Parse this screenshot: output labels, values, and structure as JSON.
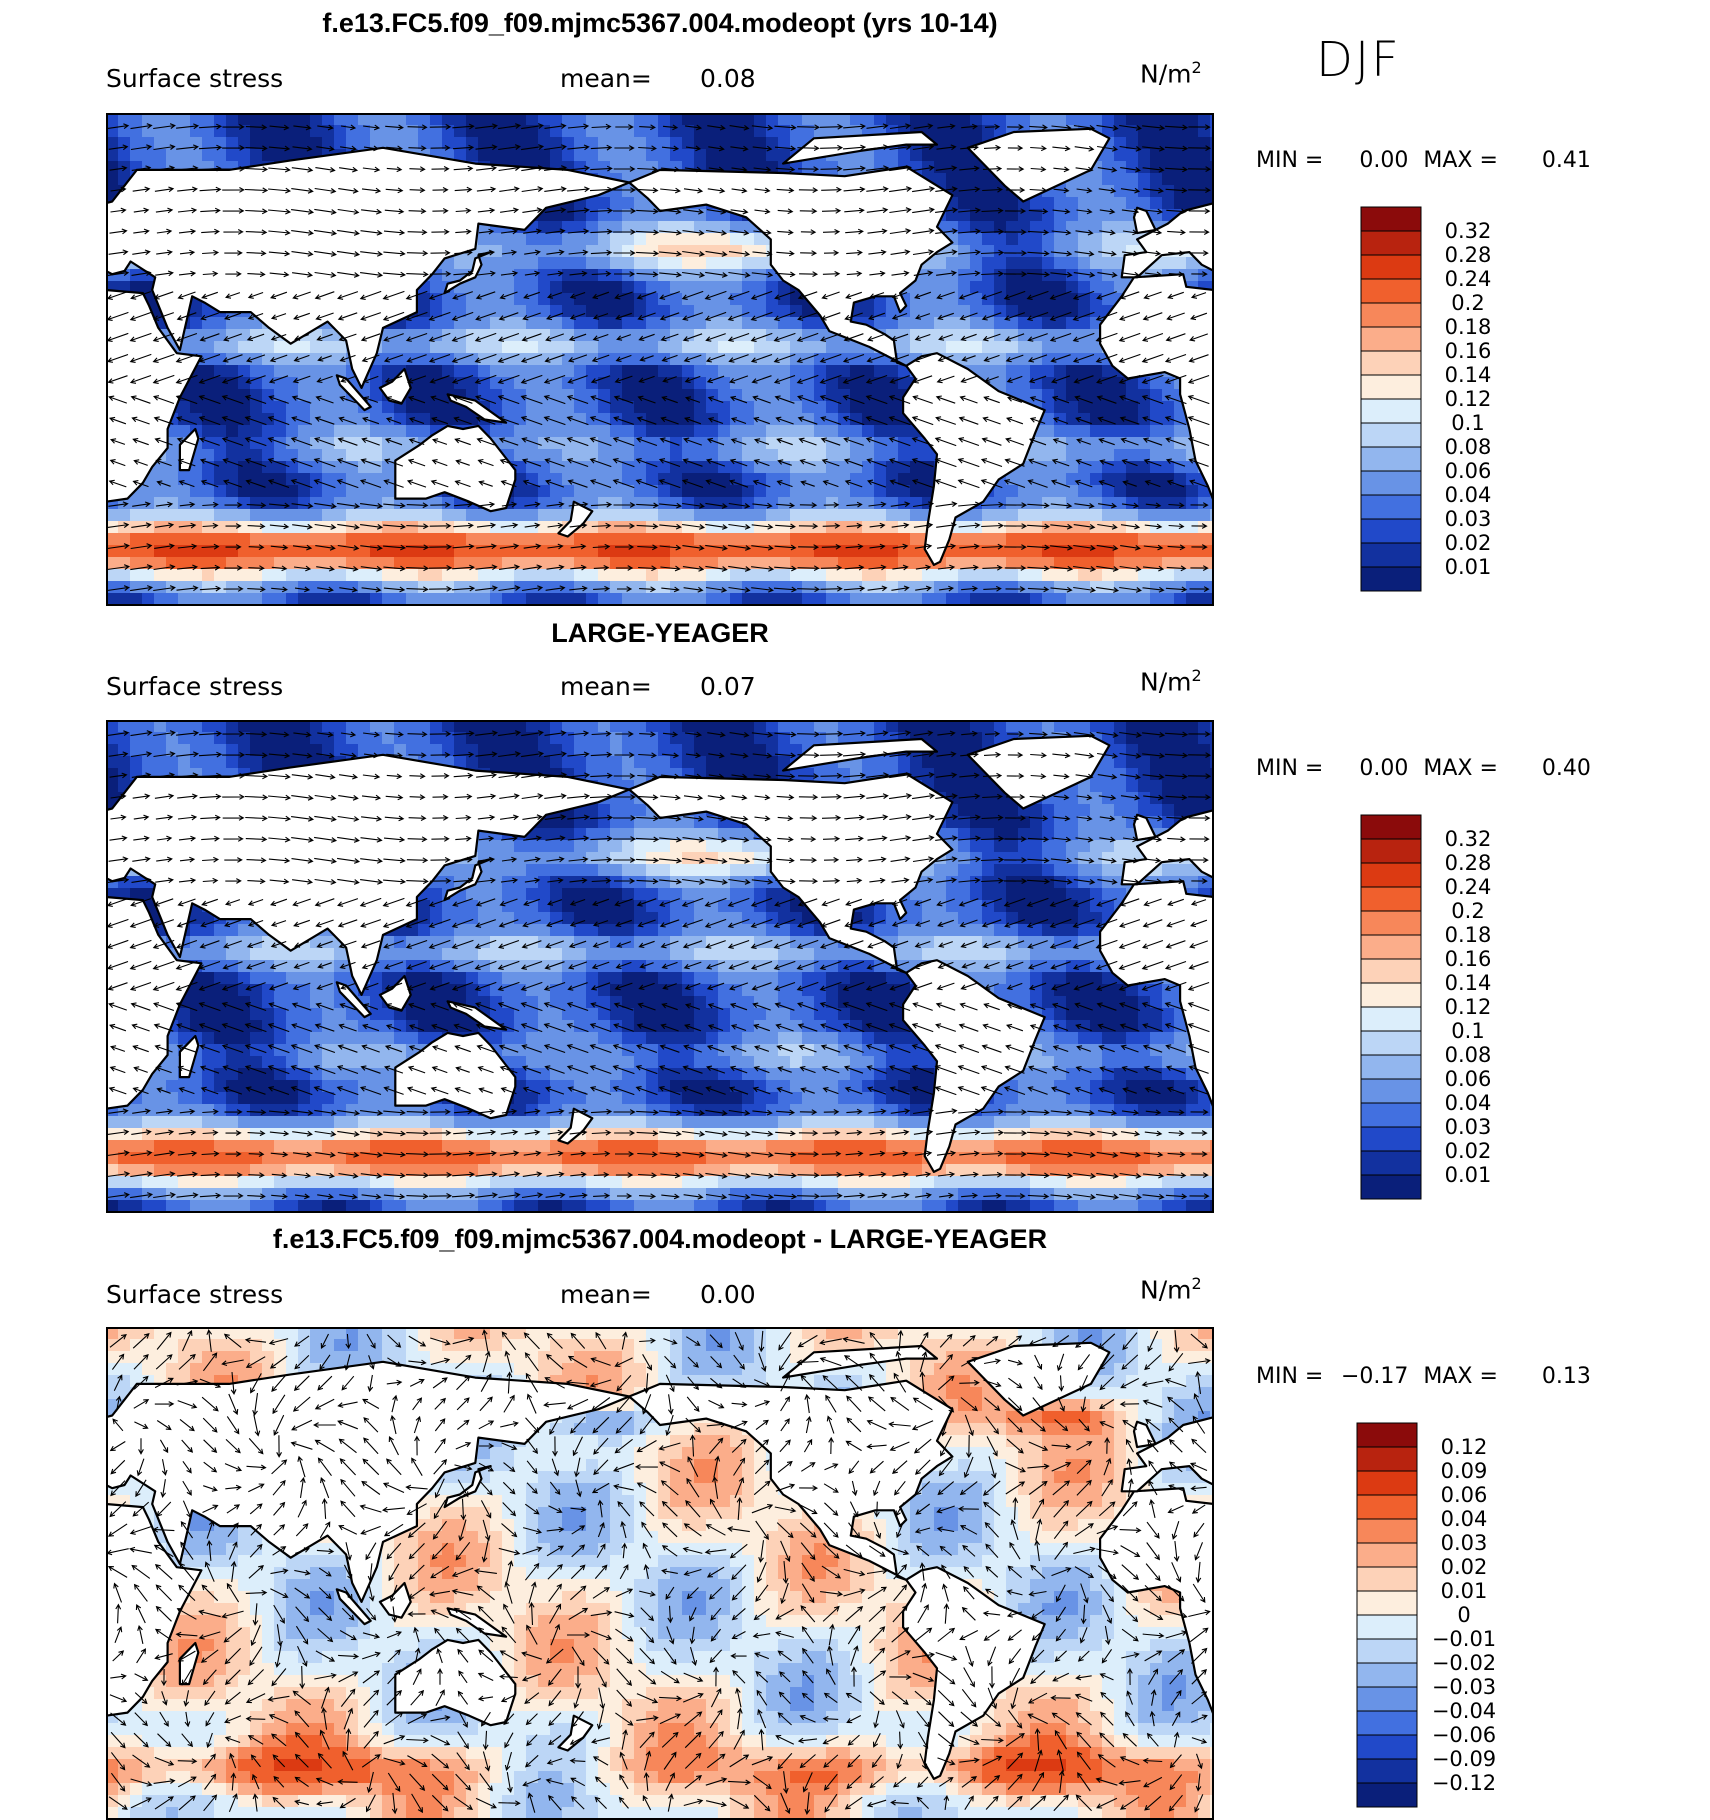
{
  "season": "DJF",
  "panels": [
    {
      "title": "f.e13.FC5.f09_f09.mjmc5367.004.modeopt (yrs 10-14)",
      "variable": "Surface stress",
      "mean_label": "mean=",
      "mean_value": "0.08",
      "units": "N/m",
      "units_exp": "2",
      "min_label": "MIN =",
      "min_value": "0.00",
      "max_label": "MAX =",
      "max_value": "0.41",
      "colorbar_labels": [
        "0.32",
        "0.28",
        "0.24",
        "0.2",
        "0.18",
        "0.16",
        "0.14",
        "0.12",
        "0.1",
        "0.08",
        "0.06",
        "0.04",
        "0.03",
        "0.02",
        "0.01"
      ],
      "colors": [
        "#8b0b0b",
        "#b8230f",
        "#dc3a12",
        "#f0602d",
        "#f7875a",
        "#fbad8a",
        "#fdd2b8",
        "#fdeede",
        "#dceefb",
        "#bcd6f6",
        "#92b6ee",
        "#6893e6",
        "#4270e0",
        "#2149c9",
        "#12319f",
        "#0a1f7a"
      ]
    },
    {
      "title": "LARGE-YEAGER",
      "variable": "Surface stress",
      "mean_label": "mean=",
      "mean_value": "0.07",
      "units": "N/m",
      "units_exp": "2",
      "min_label": "MIN =",
      "min_value": "0.00",
      "max_label": "MAX =",
      "max_value": "0.40",
      "colorbar_labels": [
        "0.32",
        "0.28",
        "0.24",
        "0.2",
        "0.18",
        "0.16",
        "0.14",
        "0.12",
        "0.1",
        "0.08",
        "0.06",
        "0.04",
        "0.03",
        "0.02",
        "0.01"
      ],
      "colors": [
        "#8b0b0b",
        "#b8230f",
        "#dc3a12",
        "#f0602d",
        "#f7875a",
        "#fbad8a",
        "#fdd2b8",
        "#fdeede",
        "#dceefb",
        "#bcd6f6",
        "#92b6ee",
        "#6893e6",
        "#4270e0",
        "#2149c9",
        "#12319f",
        "#0a1f7a"
      ]
    },
    {
      "title": "f.e13.FC5.f09_f09.mjmc5367.004.modeopt - LARGE-YEAGER",
      "variable": "Surface stress",
      "mean_label": "mean=",
      "mean_value": "0.00",
      "units": "N/m",
      "units_exp": "2",
      "min_label": "MIN =",
      "min_value": "−0.17",
      "max_label": "MAX =",
      "max_value": "0.13",
      "colorbar_labels": [
        "0.12",
        "0.09",
        "0.06",
        "0.04",
        "0.03",
        "0.02",
        "0.01",
        "0",
        "−0.01",
        "−0.02",
        "−0.03",
        "−0.04",
        "−0.06",
        "−0.09",
        "−0.12"
      ],
      "colors": [
        "#8b0b0b",
        "#b8230f",
        "#dc3a12",
        "#f0602d",
        "#f7875a",
        "#fbad8a",
        "#fdd2b8",
        "#fdeede",
        "#dceefb",
        "#bcd6f6",
        "#92b6ee",
        "#6893e6",
        "#4270e0",
        "#2149c9",
        "#12319f",
        "#0a1f7a"
      ]
    }
  ]
}
